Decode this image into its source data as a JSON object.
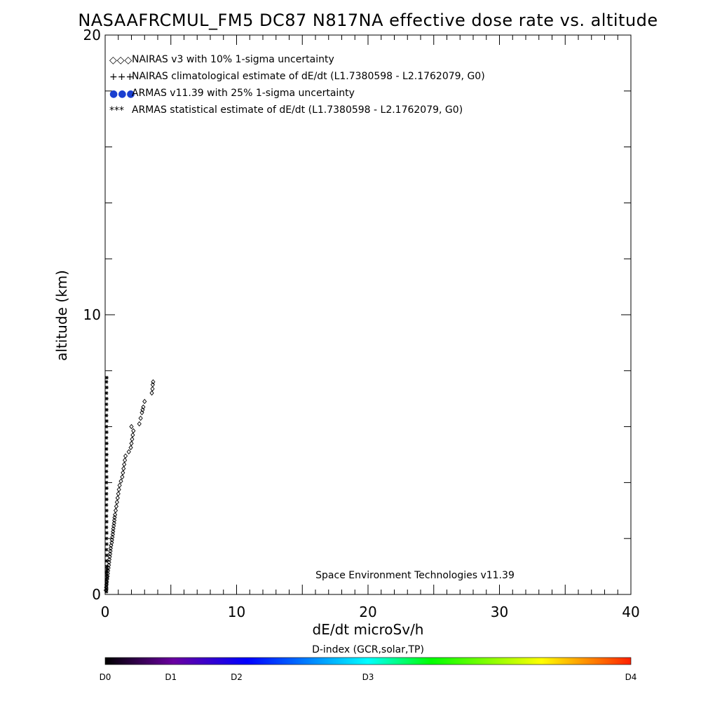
{
  "chart_data": {
    "type": "scatter",
    "title": "NASAAFRCMUL_FM5 DC87 N817NA effective dose rate vs. altitude",
    "xlabel": "dE/dt microSv/h",
    "ylabel": "altitude (km)",
    "xlim": [
      0,
      40
    ],
    "ylim": [
      0,
      20
    ],
    "x_ticks": [
      0,
      10,
      20,
      30,
      40
    ],
    "y_ticks": [
      0,
      10,
      20
    ],
    "grid": false,
    "legend_position": "top-left",
    "legend": [
      {
        "marker": "◇◇◇",
        "color": "#000000",
        "label": "NAIRAS v3 with 10% 1-sigma uncertainty"
      },
      {
        "marker": "+++",
        "color": "#000000",
        "label": "NAIRAS climatological estimate of dE/dt (L1.7380598 - L2.1762079, G0)"
      },
      {
        "marker": "●●●",
        "color": "#1a3fd0",
        "label": "ARMAS v11.39 with 25% 1-sigma uncertainty"
      },
      {
        "marker": "***",
        "color": "#000000",
        "label": "ARMAS statistical estimate of dE/dt (L1.7380598 - L2.1762079, G0)"
      }
    ],
    "annotation": "Space Environment Technologies v11.39",
    "series": [
      {
        "name": "NAIRAS v3 with 10% 1-sigma uncertainty",
        "marker": "diamond",
        "color": "#000000",
        "points": [
          [
            0.05,
            0.15
          ],
          [
            0.08,
            0.25
          ],
          [
            0.1,
            0.35
          ],
          [
            0.12,
            0.45
          ],
          [
            0.15,
            0.55
          ],
          [
            0.18,
            0.65
          ],
          [
            0.2,
            0.75
          ],
          [
            0.22,
            0.85
          ],
          [
            0.25,
            0.95
          ],
          [
            0.28,
            1.05
          ],
          [
            0.3,
            1.15
          ],
          [
            0.32,
            1.25
          ],
          [
            0.35,
            1.35
          ],
          [
            0.38,
            1.45
          ],
          [
            0.4,
            1.55
          ],
          [
            0.42,
            1.65
          ],
          [
            0.45,
            1.75
          ],
          [
            0.5,
            1.85
          ],
          [
            0.52,
            1.95
          ],
          [
            0.55,
            2.05
          ],
          [
            0.58,
            2.15
          ],
          [
            0.6,
            2.25
          ],
          [
            0.62,
            2.35
          ],
          [
            0.65,
            2.45
          ],
          [
            0.68,
            2.55
          ],
          [
            0.7,
            2.65
          ],
          [
            0.72,
            2.75
          ],
          [
            0.75,
            2.85
          ],
          [
            0.8,
            3.0
          ],
          [
            0.85,
            3.15
          ],
          [
            0.9,
            3.3
          ],
          [
            0.95,
            3.45
          ],
          [
            1.0,
            3.6
          ],
          [
            1.05,
            3.75
          ],
          [
            1.1,
            3.9
          ],
          [
            1.2,
            4.05
          ],
          [
            1.3,
            4.2
          ],
          [
            1.35,
            4.35
          ],
          [
            1.4,
            4.5
          ],
          [
            1.45,
            4.65
          ],
          [
            1.5,
            4.8
          ],
          [
            1.55,
            4.95
          ],
          [
            1.8,
            5.1
          ],
          [
            1.95,
            5.25
          ],
          [
            2.0,
            5.4
          ],
          [
            2.05,
            5.55
          ],
          [
            2.1,
            5.7
          ],
          [
            2.15,
            5.85
          ],
          [
            2.0,
            6.0
          ],
          [
            2.6,
            6.1
          ],
          [
            2.7,
            6.3
          ],
          [
            2.8,
            6.5
          ],
          [
            2.85,
            6.6
          ],
          [
            2.9,
            6.7
          ],
          [
            3.0,
            6.9
          ],
          [
            3.55,
            7.2
          ],
          [
            3.6,
            7.35
          ],
          [
            3.62,
            7.5
          ],
          [
            3.65,
            7.6
          ]
        ]
      },
      {
        "name": "ARMAS statistical estimate of dE/dt (L1.7380598 - L2.1762079, G0)",
        "marker": "asterisk",
        "color": "#000000",
        "points": [
          [
            0.1,
            0.1
          ],
          [
            0.12,
            0.2
          ],
          [
            0.1,
            0.3
          ],
          [
            0.12,
            0.4
          ],
          [
            0.1,
            0.5
          ],
          [
            0.15,
            0.6
          ],
          [
            0.12,
            0.7
          ],
          [
            0.1,
            0.8
          ],
          [
            0.15,
            0.9
          ],
          [
            0.12,
            1.0
          ],
          [
            0.1,
            1.2
          ],
          [
            0.12,
            1.4
          ],
          [
            0.1,
            1.6
          ],
          [
            0.12,
            1.8
          ],
          [
            0.1,
            2.0
          ],
          [
            0.12,
            2.2
          ],
          [
            0.1,
            2.4
          ],
          [
            0.12,
            2.6
          ],
          [
            0.1,
            2.8
          ],
          [
            0.12,
            3.0
          ],
          [
            0.1,
            3.2
          ],
          [
            0.12,
            3.4
          ],
          [
            0.1,
            3.6
          ],
          [
            0.12,
            3.8
          ],
          [
            0.1,
            4.0
          ],
          [
            0.12,
            4.2
          ],
          [
            0.1,
            4.4
          ],
          [
            0.12,
            4.6
          ],
          [
            0.1,
            4.8
          ],
          [
            0.12,
            5.0
          ],
          [
            0.1,
            5.2
          ],
          [
            0.12,
            5.4
          ],
          [
            0.1,
            5.6
          ],
          [
            0.12,
            5.8
          ],
          [
            0.1,
            6.0
          ],
          [
            0.12,
            6.2
          ],
          [
            0.1,
            6.4
          ],
          [
            0.12,
            6.6
          ],
          [
            0.1,
            6.8
          ],
          [
            0.12,
            7.0
          ],
          [
            0.1,
            7.2
          ],
          [
            0.12,
            7.4
          ],
          [
            0.1,
            7.6
          ],
          [
            0.12,
            7.75
          ]
        ]
      }
    ],
    "colorbar": {
      "title": "D-index (GCR,solar,TP)",
      "labels": [
        "D0",
        "D1",
        "D2",
        "D3",
        "D4"
      ],
      "label_positions": [
        0,
        0.125,
        0.25,
        0.5,
        1.0
      ],
      "colors": [
        "#000000",
        "#7a00a8",
        "#0000ff",
        "#00ffff",
        "#00ff00",
        "#ffff00",
        "#ff0000"
      ]
    }
  }
}
